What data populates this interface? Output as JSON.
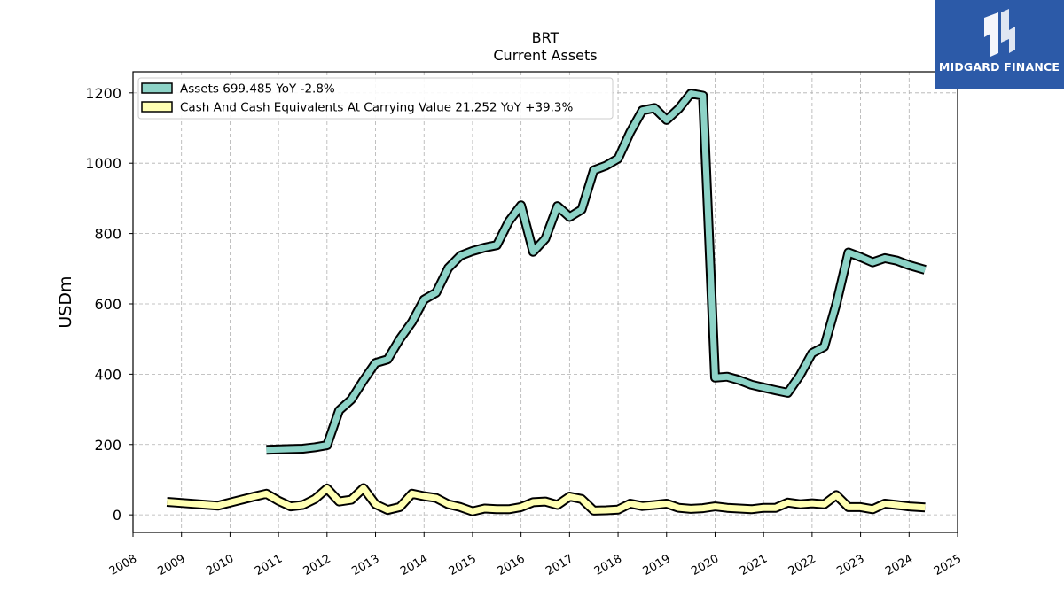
{
  "chart_data": {
    "type": "line",
    "title": "BRT",
    "subtitle": "Current  Assets",
    "xlabel": "",
    "ylabel": "USDm",
    "xlim": [
      2008,
      2025
    ],
    "ylim": [
      -50,
      1260
    ],
    "x_ticks": [
      "2008",
      "2009",
      "2010",
      "2011",
      "2012",
      "2013",
      "2014",
      "2015",
      "2016",
      "2017",
      "2018",
      "2019",
      "2020",
      "2021",
      "2022",
      "2023",
      "2024",
      "2025"
    ],
    "y_ticks": [
      "0",
      "200",
      "400",
      "600",
      "800",
      "1000",
      "1200"
    ],
    "grid": true,
    "legend_position": "top-left",
    "series": [
      {
        "name": "Assets  699.485 YoY -2.8%",
        "color": "#8dd3c7",
        "points": [
          [
            2010.75,
            185
          ],
          [
            2011.25,
            187
          ],
          [
            2011.5,
            188
          ],
          [
            2011.75,
            192
          ],
          [
            2012.0,
            198
          ],
          [
            2012.25,
            297
          ],
          [
            2012.5,
            328
          ],
          [
            2012.75,
            382
          ],
          [
            2013.0,
            432
          ],
          [
            2013.25,
            442
          ],
          [
            2013.5,
            500
          ],
          [
            2013.75,
            548
          ],
          [
            2014.0,
            612
          ],
          [
            2014.25,
            632
          ],
          [
            2014.5,
            702
          ],
          [
            2014.75,
            737
          ],
          [
            2015.0,
            750
          ],
          [
            2015.25,
            760
          ],
          [
            2015.5,
            767
          ],
          [
            2015.75,
            835
          ],
          [
            2016.0,
            880
          ],
          [
            2016.25,
            748
          ],
          [
            2016.5,
            785
          ],
          [
            2016.75,
            878
          ],
          [
            2017.0,
            847
          ],
          [
            2017.25,
            868
          ],
          [
            2017.5,
            980
          ],
          [
            2017.75,
            993
          ],
          [
            2018.0,
            1013
          ],
          [
            2018.25,
            1088
          ],
          [
            2018.5,
            1150
          ],
          [
            2018.75,
            1157
          ],
          [
            2019.0,
            1123
          ],
          [
            2019.25,
            1155
          ],
          [
            2019.5,
            1198
          ],
          [
            2019.75,
            1192
          ],
          [
            2020.0,
            390
          ],
          [
            2020.25,
            393
          ],
          [
            2020.5,
            383
          ],
          [
            2020.75,
            370
          ],
          [
            2021.0,
            362
          ],
          [
            2021.25,
            354
          ],
          [
            2021.5,
            347
          ],
          [
            2021.75,
            397
          ],
          [
            2022.0,
            460
          ],
          [
            2022.25,
            478
          ],
          [
            2022.5,
            600
          ],
          [
            2022.75,
            746
          ],
          [
            2023.0,
            733
          ],
          [
            2023.25,
            718
          ],
          [
            2023.5,
            730
          ],
          [
            2023.75,
            723
          ],
          [
            2024.0,
            710
          ],
          [
            2024.33,
            697
          ]
        ]
      },
      {
        "name": "Cash And Cash Equivalents At Carrying Value  21.252 YoY +39.3%",
        "color": "#ffffb3",
        "points": [
          [
            2008.7,
            37
          ],
          [
            2009.0,
            34
          ],
          [
            2009.75,
            26
          ],
          [
            2010.0,
            35
          ],
          [
            2010.5,
            52
          ],
          [
            2010.75,
            60
          ],
          [
            2011.0,
            40
          ],
          [
            2011.25,
            24
          ],
          [
            2011.5,
            28
          ],
          [
            2011.75,
            45
          ],
          [
            2012.0,
            75
          ],
          [
            2012.25,
            38
          ],
          [
            2012.5,
            43
          ],
          [
            2012.75,
            76
          ],
          [
            2013.0,
            30
          ],
          [
            2013.25,
            14
          ],
          [
            2013.5,
            22
          ],
          [
            2013.75,
            60
          ],
          [
            2014.0,
            53
          ],
          [
            2014.25,
            48
          ],
          [
            2014.5,
            30
          ],
          [
            2014.75,
            22
          ],
          [
            2015.0,
            10
          ],
          [
            2015.25,
            18
          ],
          [
            2015.5,
            16
          ],
          [
            2015.75,
            16
          ],
          [
            2016.0,
            22
          ],
          [
            2016.25,
            36
          ],
          [
            2016.5,
            38
          ],
          [
            2016.75,
            28
          ],
          [
            2017.0,
            52
          ],
          [
            2017.25,
            45
          ],
          [
            2017.5,
            12
          ],
          [
            2017.75,
            13
          ],
          [
            2018.0,
            15
          ],
          [
            2018.25,
            32
          ],
          [
            2018.5,
            25
          ],
          [
            2018.75,
            28
          ],
          [
            2019.0,
            32
          ],
          [
            2019.25,
            20
          ],
          [
            2019.5,
            17
          ],
          [
            2019.75,
            19
          ],
          [
            2020.0,
            24
          ],
          [
            2020.25,
            20
          ],
          [
            2020.5,
            18
          ],
          [
            2020.75,
            16
          ],
          [
            2021.0,
            20
          ],
          [
            2021.25,
            20
          ],
          [
            2021.5,
            35
          ],
          [
            2021.75,
            30
          ],
          [
            2022.0,
            33
          ],
          [
            2022.25,
            30
          ],
          [
            2022.5,
            56
          ],
          [
            2022.75,
            22
          ],
          [
            2023.0,
            22
          ],
          [
            2023.25,
            16
          ],
          [
            2023.5,
            32
          ],
          [
            2023.75,
            28
          ],
          [
            2024.0,
            24
          ],
          [
            2024.33,
            21
          ]
        ]
      }
    ]
  },
  "logo": {
    "name": "midgard-finance-logo",
    "text": "MIDGARD FINANCE",
    "bg_color": "#2c5aa8"
  }
}
